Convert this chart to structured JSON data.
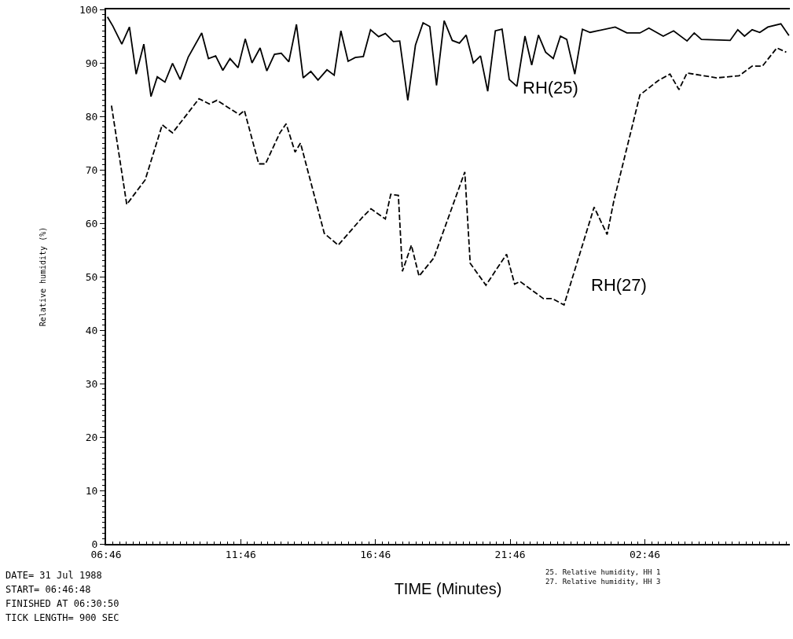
{
  "chart_data": {
    "type": "line",
    "xlabel": "TIME (Minutes)",
    "ylabel": "Relative humidity (%)",
    "xlim": [
      "1988-07-31T06:46",
      "1988-08-01T08:09"
    ],
    "xticks": [
      {
        "value": "1988-07-31T06:46",
        "label": "06:46"
      },
      {
        "value": "1988-07-31T11:46",
        "label": "11:46"
      },
      {
        "value": "1988-07-31T16:46",
        "label": "16:46"
      },
      {
        "value": "1988-07-31T21:46",
        "label": "21:46"
      },
      {
        "value": "1988-08-01T02:46",
        "label": "02:46"
      }
    ],
    "ylim": [
      0,
      100
    ],
    "yticks": [
      0,
      10,
      20,
      30,
      40,
      50,
      60,
      70,
      80,
      90,
      100
    ],
    "legend": false,
    "marker": "none",
    "series": [
      {
        "name": "RH(25)",
        "color": "#000000",
        "line_style": "solid",
        "x": [
          "1988-07-31T06:49",
          "1988-07-31T07:01",
          "1988-07-31T07:21",
          "1988-07-31T07:38",
          "1988-07-31T07:53",
          "1988-07-31T08:10",
          "1988-07-31T08:26",
          "1988-07-31T08:40",
          "1988-07-31T08:57",
          "1988-07-31T09:14",
          "1988-07-31T09:31",
          "1988-07-31T09:49",
          "1988-07-31T10:19",
          "1988-07-31T10:34",
          "1988-07-31T10:50",
          "1988-07-31T11:06",
          "1988-07-31T11:22",
          "1988-07-31T11:40",
          "1988-07-31T11:56",
          "1988-07-31T12:11",
          "1988-07-31T12:29",
          "1988-07-31T12:44",
          "1988-07-31T13:01",
          "1988-07-31T13:16",
          "1988-07-31T13:33",
          "1988-07-31T13:50",
          "1988-07-31T14:05",
          "1988-07-31T14:22",
          "1988-07-31T14:38",
          "1988-07-31T14:58",
          "1988-07-31T15:14",
          "1988-07-31T15:29",
          "1988-07-31T15:45",
          "1988-07-31T16:01",
          "1988-07-31T16:19",
          "1988-07-31T16:35",
          "1988-07-31T16:53",
          "1988-07-31T17:08",
          "1988-07-31T17:26",
          "1988-07-31T17:40",
          "1988-07-31T17:58",
          "1988-07-31T18:15",
          "1988-07-31T18:32",
          "1988-07-31T18:47",
          "1988-07-31T19:02",
          "1988-07-31T19:19",
          "1988-07-31T19:37",
          "1988-07-31T19:53",
          "1988-07-31T20:08",
          "1988-07-31T20:24",
          "1988-07-31T20:40",
          "1988-07-31T20:56",
          "1988-07-31T21:13",
          "1988-07-31T21:28",
          "1988-07-31T21:44",
          "1988-07-31T22:01",
          "1988-07-31T22:19",
          "1988-07-31T22:34",
          "1988-07-31T22:49",
          "1988-07-31T23:05",
          "1988-07-31T23:22",
          "1988-07-31T23:38",
          "1988-07-31T23:52",
          "1988-08-01T00:10",
          "1988-08-01T00:27",
          "1988-08-01T00:44",
          "1988-08-01T01:40",
          "1988-08-01T02:06",
          "1988-08-01T02:35",
          "1988-08-01T02:55",
          "1988-08-01T03:27",
          "1988-08-01T03:50",
          "1988-08-01T04:20",
          "1988-08-01T04:36",
          "1988-08-01T04:52",
          "1988-08-01T05:56",
          "1988-08-01T06:13",
          "1988-08-01T06:28",
          "1988-08-01T06:45",
          "1988-08-01T07:02",
          "1988-08-01T07:20",
          "1988-08-01T07:49",
          "1988-08-01T08:07"
        ],
        "values": [
          98.6,
          96.9,
          93.5,
          96.7,
          87.9,
          93.5,
          83.7,
          87.4,
          86.4,
          89.9,
          86.9,
          91.1,
          95.6,
          90.8,
          91.3,
          88.6,
          90.8,
          89.1,
          94.5,
          90.0,
          92.8,
          88.5,
          91.6,
          91.8,
          90.2,
          97.2,
          87.2,
          88.4,
          86.8,
          88.7,
          87.7,
          96.0,
          90.3,
          91.0,
          91.2,
          96.2,
          94.9,
          95.5,
          94.0,
          94.1,
          83.0,
          93.3,
          97.5,
          96.8,
          85.8,
          97.9,
          94.2,
          93.7,
          95.2,
          90.0,
          91.3,
          84.7,
          96.0,
          96.3,
          86.9,
          85.6,
          95.0,
          89.6,
          95.2,
          92.0,
          90.8,
          95.0,
          94.4,
          87.9,
          96.3,
          95.7,
          96.7,
          95.6,
          95.6,
          96.5,
          95.0,
          96.0,
          94.1,
          95.6,
          94.4,
          94.2,
          96.2,
          95.0,
          96.2,
          95.7,
          96.7,
          97.3,
          95.1
        ]
      },
      {
        "name": "RH(27)",
        "color": "#000000",
        "line_style": "dashed",
        "x": [
          "1988-07-31T06:58",
          "1988-07-31T07:32",
          "1988-07-31T07:47",
          "1988-07-31T08:13",
          "1988-07-31T08:51",
          "1988-07-31T09:14",
          "1988-07-31T10:13",
          "1988-07-31T10:36",
          "1988-07-31T10:53",
          "1988-07-31T11:43",
          "1988-07-31T11:54",
          "1988-07-31T12:26",
          "1988-07-31T12:41",
          "1988-07-31T13:13",
          "1988-07-31T13:27",
          "1988-07-31T13:47",
          "1988-07-31T13:59",
          "1988-07-31T14:52",
          "1988-07-31T15:23",
          "1988-07-31T16:19",
          "1988-07-31T16:36",
          "1988-07-31T17:08",
          "1988-07-31T17:20",
          "1988-07-31T17:37",
          "1988-07-31T17:46",
          "1988-07-31T18:06",
          "1988-07-31T18:23",
          "1988-07-31T18:56",
          "1988-07-31T20:05",
          "1988-07-31T20:17",
          "1988-07-31T20:52",
          "1988-07-31T21:38",
          "1988-07-31T21:56",
          "1988-07-31T22:08",
          "1988-07-31T23:00",
          "1988-07-31T23:20",
          "1988-07-31T23:46",
          "1988-08-01T00:53",
          "1988-08-01T01:22",
          "1988-08-01T01:37",
          "1988-08-01T02:35",
          "1988-08-01T03:16",
          "1988-08-01T03:42",
          "1988-08-01T04:02",
          "1988-08-01T04:20",
          "1988-08-01T05:26",
          "1988-08-01T06:16",
          "1988-08-01T06:45",
          "1988-08-01T07:08",
          "1988-08-01T07:40",
          "1988-08-01T08:01"
        ],
        "values": [
          82.0,
          63.5,
          65.2,
          68.1,
          78.4,
          76.9,
          83.3,
          82.3,
          83.0,
          80.3,
          81.1,
          71.1,
          71.1,
          76.9,
          78.6,
          73.3,
          75.0,
          58.1,
          55.9,
          61.3,
          62.7,
          60.8,
          65.4,
          65.2,
          51.0,
          55.9,
          50.1,
          53.5,
          69.6,
          52.5,
          48.4,
          54.2,
          48.6,
          49.1,
          45.9,
          45.9,
          44.7,
          63.0,
          57.9,
          64.2,
          84.0,
          86.7,
          87.9,
          85.0,
          88.1,
          87.2,
          87.6,
          89.4,
          89.4,
          92.8,
          92.0
        ]
      }
    ],
    "annotations": [
      "DATE= 31 Jul 1988",
      "START= 06:46:48",
      "FINISHED AT 06:30:50",
      "TICK LENGTH= 900 SEC",
      "25. Relative humidity, HH 1",
      "27. Relative humidity, HH 3"
    ]
  }
}
